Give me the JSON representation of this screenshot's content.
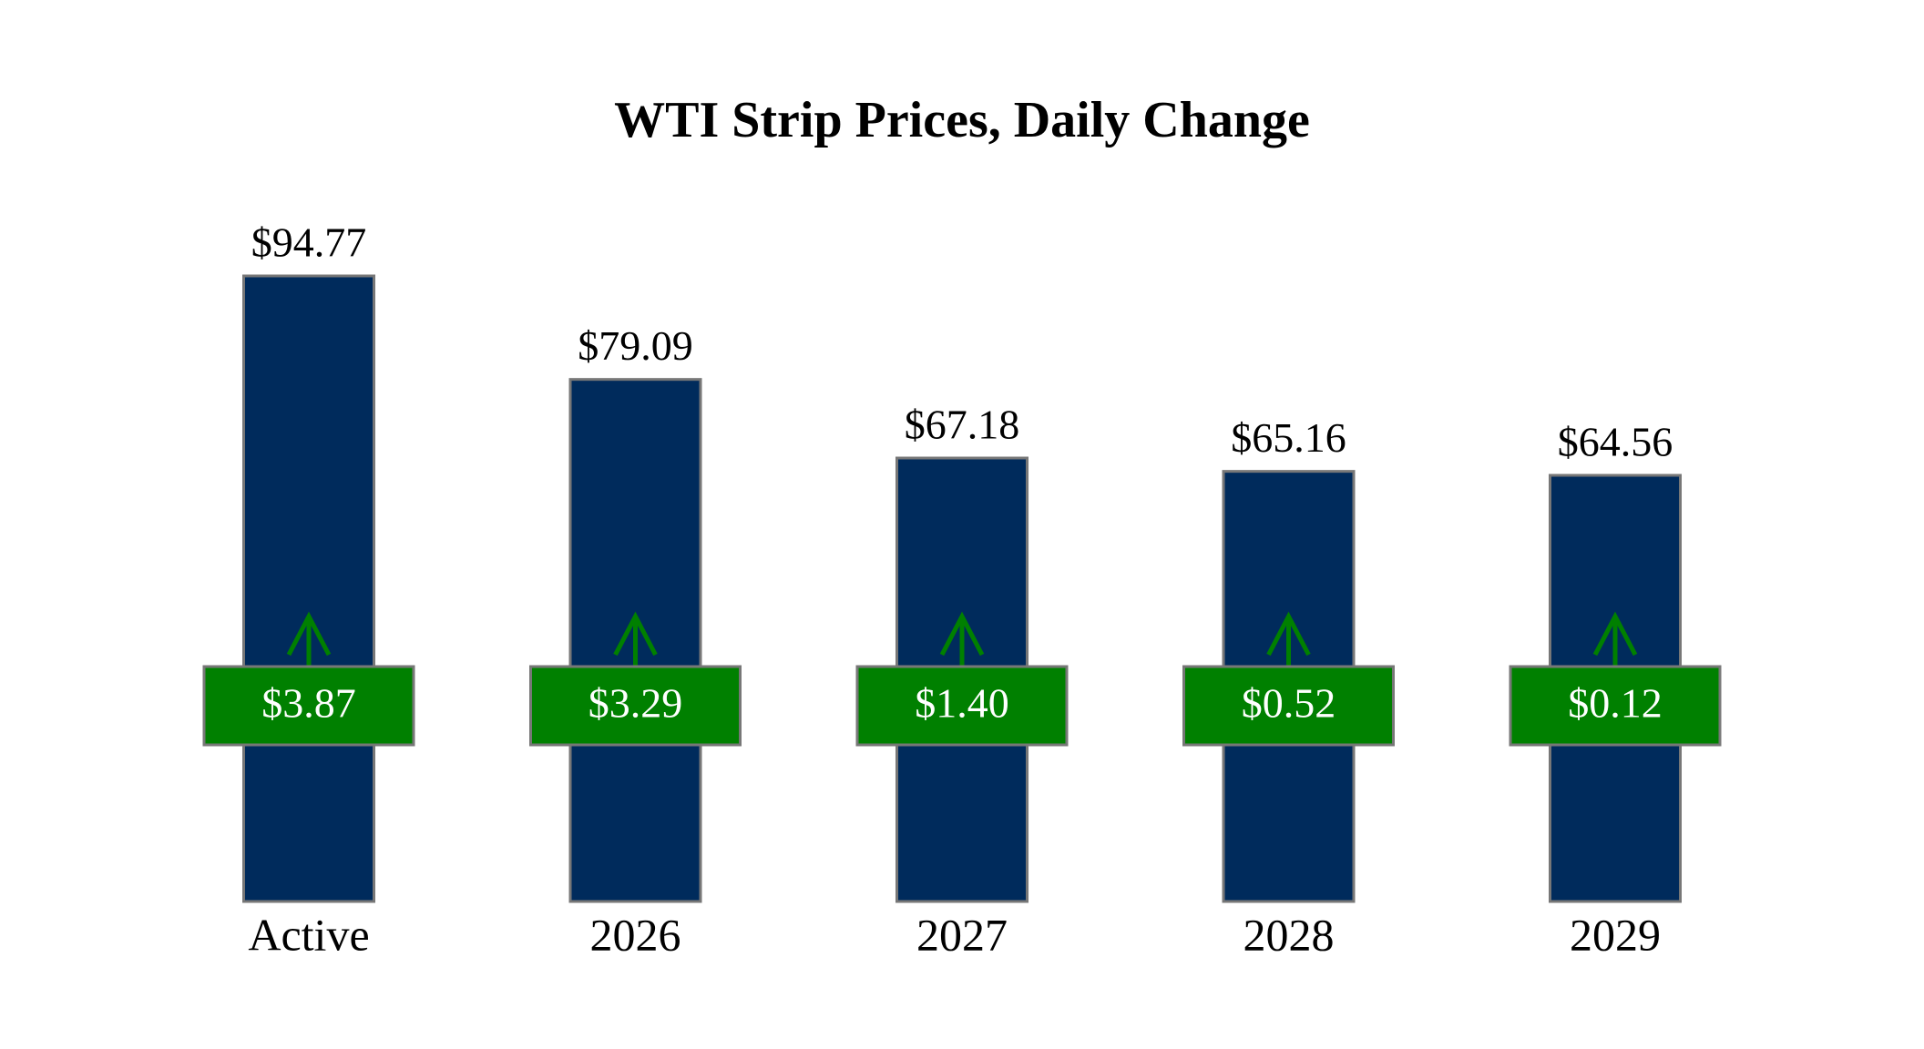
{
  "chart_data": {
    "type": "bar",
    "title": "WTI Strip Prices, Daily Change",
    "categories": [
      "Active",
      "2026",
      "2027",
      "2028",
      "2029"
    ],
    "values": [
      94.77,
      79.09,
      67.18,
      65.16,
      64.56
    ],
    "value_labels": [
      "$94.77",
      "$79.09",
      "$67.18",
      "$65.16",
      "$64.56"
    ],
    "color": "#002b5c",
    "changes": [
      3.87,
      3.29,
      1.4,
      0.52,
      0.12
    ],
    "change_labels": [
      "$3.87",
      "$3.29",
      "$1.40",
      "$0.52",
      "$0.12"
    ],
    "change_color": "#008000"
  }
}
